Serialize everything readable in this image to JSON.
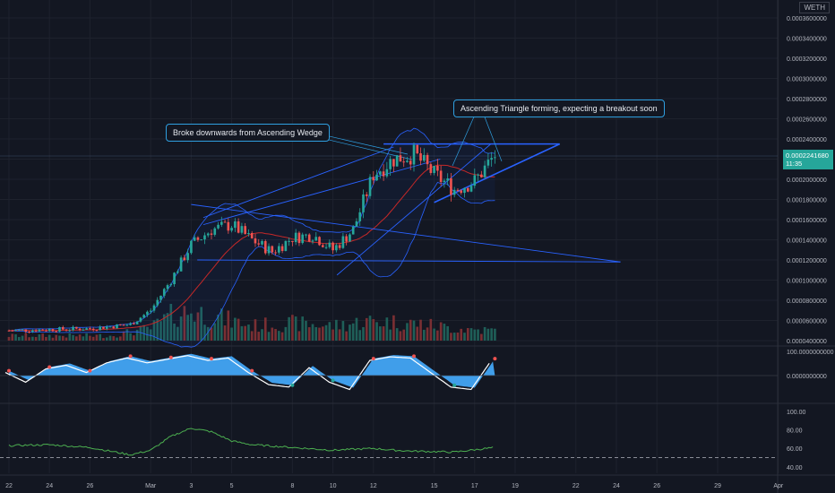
{
  "symbol_badge": "WETH",
  "annotations": {
    "wedge": "Broke downwards from Ascending Wedge",
    "triangle": "Ascending Triangle forming, expecting a breakout soon"
  },
  "price_tag": {
    "price": "0.0002241680",
    "countdown": "11:35"
  },
  "colors": {
    "bg": "#131722",
    "up": "#26a69a",
    "down": "#ef5350",
    "line": "#2962ff",
    "osc": "#42a5f5",
    "rsi": "#4caf50"
  },
  "chart_data": [
    {
      "type": "candlestick",
      "title": "",
      "price_axis": {
        "min": 4e-05,
        "max": 0.00036,
        "log": false,
        "tick_labels": [
          "0.0003600000",
          "0.0003400000",
          "0.0003200000",
          "0.0003000000",
          "0.0002800000",
          "0.0002600000",
          "0.0002400000",
          "0.0002200000",
          "0.0002000000",
          "0.0001800000",
          "0.0001600000",
          "0.0001400000",
          "0.0001200000",
          "0.0001000000",
          "0.0000800000",
          "0.0000600000",
          "0.0000400000"
        ],
        "tick_values": [
          0.00036,
          0.00034,
          0.00032,
          0.0003,
          0.00028,
          0.00026,
          0.00024,
          0.00022,
          0.0002,
          0.00018,
          0.00016,
          0.00014,
          0.00012,
          0.0001,
          8e-05,
          6e-05,
          4e-05
        ]
      },
      "time_axis": {
        "labels": [
          "22",
          "24",
          "26",
          "Mar",
          "3",
          "5",
          "8",
          "10",
          "12",
          "15",
          "17",
          "19",
          "22",
          "24",
          "26",
          "29",
          "Apr"
        ],
        "label_day_index": [
          0,
          2,
          4,
          7,
          9,
          11,
          14,
          16,
          18,
          21,
          23,
          25,
          28,
          30,
          32,
          35,
          38
        ]
      },
      "grid": true,
      "price_day_points": [
        [
          0,
          5e-05
        ],
        [
          4,
          5.2e-05
        ],
        [
          6,
          5.6e-05
        ],
        [
          7,
          7e-05
        ],
        [
          8,
          0.0001
        ],
        [
          9,
          0.000135
        ],
        [
          10,
          0.00015
        ],
        [
          11,
          0.000155
        ],
        [
          12,
          0.00014
        ],
        [
          13,
          0.000128
        ],
        [
          14,
          0.000142
        ],
        [
          15,
          0.000145
        ],
        [
          16,
          0.00013
        ],
        [
          17,
          0.00015
        ],
        [
          18,
          0.000205
        ],
        [
          19,
          0.00022
        ],
        [
          20,
          0.000225
        ],
        [
          21,
          0.000205
        ],
        [
          22,
          0.00019
        ],
        [
          23,
          0.000198
        ],
        [
          24,
          0.000224
        ]
      ],
      "volume_day_points": [
        [
          0,
          0.1
        ],
        [
          5,
          0.1
        ],
        [
          7,
          0.25
        ],
        [
          8,
          0.5
        ],
        [
          9,
          0.6
        ],
        [
          10,
          0.5
        ],
        [
          11,
          0.4
        ],
        [
          12,
          0.3
        ],
        [
          14,
          0.35
        ],
        [
          16,
          0.3
        ],
        [
          18,
          0.4
        ],
        [
          20,
          0.35
        ],
        [
          22,
          0.25
        ],
        [
          24,
          0.2
        ]
      ]
    },
    {
      "type": "area",
      "title": "",
      "axis_labels": [
        "100.0000000000",
        "0.0000000000"
      ],
      "range": [
        -100,
        100
      ],
      "series_day_points": [
        [
          0,
          20
        ],
        [
          1,
          -20
        ],
        [
          2,
          35
        ],
        [
          3,
          50
        ],
        [
          4,
          20
        ],
        [
          5,
          60
        ],
        [
          6,
          80
        ],
        [
          7,
          60
        ],
        [
          8,
          75
        ],
        [
          9,
          90
        ],
        [
          10,
          70
        ],
        [
          11,
          80
        ],
        [
          12,
          20
        ],
        [
          13,
          -30
        ],
        [
          14,
          -40
        ],
        [
          15,
          40
        ],
        [
          16,
          -20
        ],
        [
          17,
          -50
        ],
        [
          18,
          70
        ],
        [
          19,
          85
        ],
        [
          20,
          80
        ],
        [
          21,
          20
        ],
        [
          22,
          -40
        ],
        [
          23,
          -50
        ],
        [
          24,
          70
        ]
      ]
    },
    {
      "type": "line",
      "title": "",
      "axis_labels": [
        "100.00",
        "80.00",
        "60.00",
        "40.00"
      ],
      "axis_values": [
        100,
        80,
        60,
        40
      ],
      "range": [
        33,
        103
      ],
      "reference_level": 50,
      "series_day_points": [
        [
          0,
          63
        ],
        [
          2,
          64
        ],
        [
          4,
          61
        ],
        [
          5,
          57
        ],
        [
          6,
          53
        ],
        [
          7,
          58
        ],
        [
          8,
          73
        ],
        [
          9,
          82
        ],
        [
          10,
          78
        ],
        [
          11,
          68
        ],
        [
          12,
          64
        ],
        [
          14,
          61
        ],
        [
          16,
          58
        ],
        [
          18,
          60
        ],
        [
          19,
          58
        ],
        [
          20,
          57
        ],
        [
          22,
          56
        ],
        [
          24,
          61
        ]
      ]
    }
  ]
}
